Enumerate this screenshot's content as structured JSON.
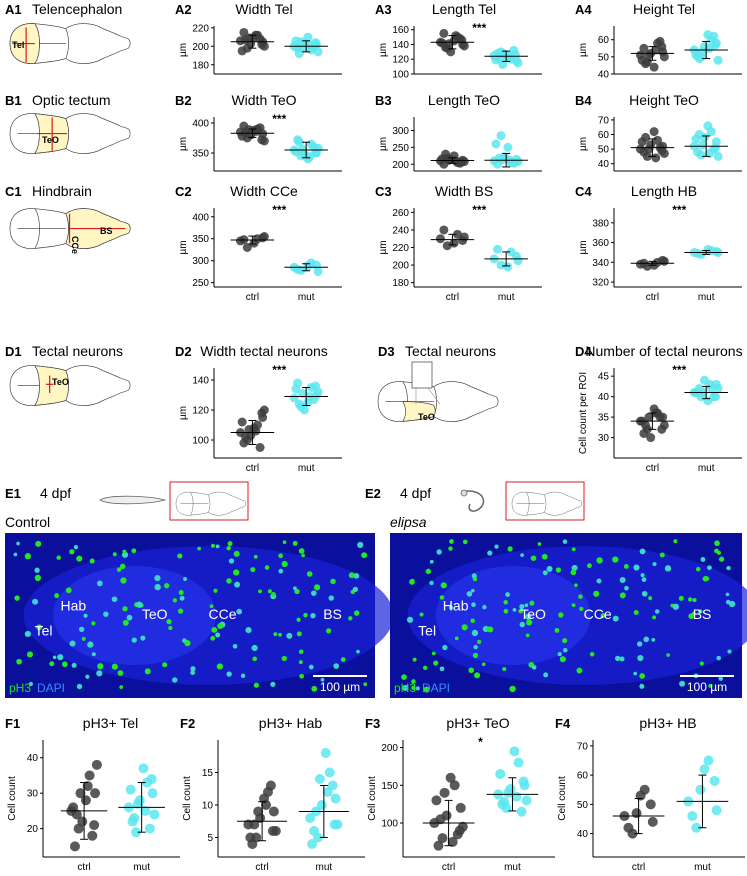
{
  "colors": {
    "ctrl": "#3d3d3d",
    "mut": "#5ce6ee",
    "highlight": "#fff6c4",
    "cut": "#d81e1e",
    "green": "#19e619",
    "blue": "#2a5cff",
    "micro_bg": "#0a0f9c"
  },
  "row_a": {
    "label": "A1",
    "title": "Telencephalon",
    "region": "Tel"
  },
  "row_b": {
    "label": "B1",
    "title": "Optic tectum",
    "region": "TeO"
  },
  "row_c": {
    "label": "C1",
    "title": "Hindbrain",
    "region_cce": "CCe",
    "region_bs": "BS"
  },
  "row_d": {
    "label": "D1",
    "title": "Tectal neurons",
    "region": "TeO",
    "d3_label": "D3",
    "d3_title": "Tectal neurons",
    "d3_region": "TeO"
  },
  "micro": {
    "e1": {
      "label": "E1",
      "age": "4 dpf",
      "cond": "Control"
    },
    "e2": {
      "label": "E2",
      "age": "4 dpf",
      "cond": "elipsa"
    },
    "regions": [
      "Tel",
      "Hab",
      "TeO",
      "CCe",
      "BS"
    ],
    "stain1": "pH3",
    "stain2": "DAPI",
    "scale": "100 µm"
  },
  "chart_data": [
    {
      "id": "A2",
      "type": "scatter",
      "title": "Width Tel",
      "ylabel": "µm",
      "ylim": [
        170,
        222
      ],
      "yticks": [
        180,
        200,
        220
      ],
      "sig": "",
      "categories": [],
      "series": [
        {
          "name": "ctrl",
          "values": [
            206,
            212,
            198,
            205,
            215,
            210,
            200,
            203,
            208,
            195,
            212,
            207,
            202,
            209
          ]
        },
        {
          "name": "mut",
          "values": [
            200,
            196,
            205,
            202,
            198,
            210,
            194,
            203,
            199,
            206,
            201,
            192,
            204,
            198
          ]
        }
      ],
      "means": [
        205,
        200
      ],
      "sd": [
        7,
        6
      ]
    },
    {
      "id": "A3",
      "type": "scatter",
      "title": "Length Tel",
      "ylabel": "µm",
      "ylim": [
        100,
        165
      ],
      "yticks": [
        100,
        120,
        140,
        160
      ],
      "sig": "***",
      "categories": [],
      "series": [
        {
          "name": "ctrl",
          "values": [
            143,
            150,
            135,
            140,
            155,
            145,
            138,
            130,
            148,
            142,
            152,
            136,
            146,
            141
          ]
        },
        {
          "name": "mut",
          "values": [
            125,
            120,
            130,
            118,
            128,
            122,
            115,
            127,
            132,
            119,
            124,
            121,
            126,
            113
          ]
        }
      ],
      "means": [
        143,
        124
      ],
      "sd": [
        9,
        7
      ]
    },
    {
      "id": "A4",
      "type": "scatter",
      "title": "Height Tel",
      "ylabel": "µm",
      "ylim": [
        40,
        68
      ],
      "yticks": [
        40,
        50,
        60
      ],
      "sig": "",
      "categories": [],
      "series": [
        {
          "name": "ctrl",
          "values": [
            51,
            58,
            47,
            53,
            55,
            44,
            50,
            52,
            59,
            48,
            54,
            46,
            56,
            51
          ]
        },
        {
          "name": "mut",
          "values": [
            54,
            60,
            50,
            58,
            52,
            63,
            48,
            56,
            62,
            51,
            55,
            49,
            57,
            53
          ]
        }
      ],
      "means": [
        52,
        54
      ],
      "sd": [
        4,
        5
      ]
    },
    {
      "id": "B2",
      "type": "scatter",
      "title": "Width TeO",
      "ylabel": "µm",
      "ylim": [
        320,
        410
      ],
      "yticks": [
        350,
        400
      ],
      "sig": "***",
      "categories": [],
      "series": [
        {
          "name": "ctrl",
          "values": [
            385,
            390,
            375,
            382,
            395,
            388,
            370,
            380,
            392,
            378,
            386,
            384,
            372,
            389
          ]
        },
        {
          "name": "mut",
          "values": [
            355,
            365,
            345,
            350,
            372,
            340,
            358,
            348,
            360,
            352,
            344,
            368,
            350,
            356
          ]
        }
      ],
      "means": [
        383,
        355
      ],
      "sd": [
        7,
        13
      ]
    },
    {
      "id": "B3",
      "type": "scatter",
      "title": "Length TeO",
      "ylabel": "µm",
      "ylim": [
        180,
        340
      ],
      "yticks": [
        200,
        250,
        300
      ],
      "sig": "",
      "categories": [],
      "series": [
        {
          "name": "ctrl",
          "values": [
            210,
            205,
            218,
            212,
            200,
            225,
            208,
            214,
            203,
            216,
            210,
            230,
            207,
            212
          ]
        },
        {
          "name": "mut",
          "values": [
            210,
            205,
            285,
            215,
            200,
            250,
            208,
            222,
            203,
            260,
            212,
            218,
            206,
            214
          ]
        }
      ],
      "means": [
        211,
        212
      ],
      "sd": [
        8,
        20
      ]
    },
    {
      "id": "B4",
      "type": "scatter",
      "title": "Height TeO",
      "ylabel": "µm",
      "ylim": [
        35,
        72
      ],
      "yticks": [
        40,
        50,
        60,
        70
      ],
      "sig": "",
      "categories": [],
      "series": [
        {
          "name": "ctrl",
          "values": [
            50,
            56,
            45,
            52,
            48,
            62,
            47,
            53,
            51,
            55,
            44,
            58,
            49,
            50
          ]
        },
        {
          "name": "mut",
          "values": [
            52,
            62,
            46,
            55,
            48,
            66,
            45,
            58,
            50,
            57,
            47,
            60,
            51,
            53
          ]
        }
      ],
      "means": [
        51,
        52
      ],
      "sd": [
        6,
        7
      ]
    },
    {
      "id": "C2",
      "type": "scatter",
      "title": "Width CCe",
      "ylabel": "µm",
      "ylim": [
        240,
        420
      ],
      "yticks": [
        250,
        300,
        350,
        400
      ],
      "sig": "***",
      "categories": [
        "ctrl",
        "mut"
      ],
      "series": [
        {
          "name": "ctrl",
          "values": [
            345,
            350,
            330,
            352,
            348,
            340,
            355
          ]
        },
        {
          "name": "mut",
          "values": [
            285,
            295,
            278,
            290,
            280,
            288,
            275
          ]
        }
      ],
      "means": [
        347,
        285
      ],
      "sd": [
        9,
        8
      ]
    },
    {
      "id": "C3",
      "type": "scatter",
      "title": "Width BS",
      "ylabel": "µm",
      "ylim": [
        175,
        265
      ],
      "yticks": [
        180,
        200,
        220,
        240,
        260
      ],
      "sig": "***",
      "categories": [
        "ctrl",
        "mut"
      ],
      "series": [
        {
          "name": "ctrl",
          "values": [
            230,
            235,
            222,
            228,
            240,
            225,
            232
          ]
        },
        {
          "name": "mut",
          "values": [
            207,
            215,
            200,
            210,
            218,
            198,
            205
          ]
        }
      ],
      "means": [
        229,
        207
      ],
      "sd": [
        6,
        8
      ]
    },
    {
      "id": "C4",
      "type": "scatter",
      "title": "Length HB",
      "ylabel": "µm",
      "ylim": [
        315,
        395
      ],
      "yticks": [
        320,
        340,
        360,
        380
      ],
      "sig": "***",
      "categories": [
        "ctrl",
        "mut"
      ],
      "series": [
        {
          "name": "ctrl",
          "values": [
            338,
            340,
            336,
            342,
            339,
            337,
            341
          ]
        },
        {
          "name": "mut",
          "values": [
            350,
            352,
            348,
            351,
            349,
            353,
            350
          ]
        }
      ],
      "means": [
        339,
        350
      ],
      "sd": [
        2,
        2
      ]
    },
    {
      "id": "D2",
      "type": "scatter",
      "title": "Width tectal neurons",
      "ylabel": "µm",
      "ylim": [
        88,
        148
      ],
      "yticks": [
        100,
        120,
        140
      ],
      "sig": "***",
      "categories": [
        "ctrl",
        "mut"
      ],
      "series": [
        {
          "name": "ctrl",
          "values": [
            105,
            110,
            100,
            115,
            98,
            108,
            120,
            103,
            95,
            112,
            106,
            102,
            118,
            107
          ]
        },
        {
          "name": "mut",
          "values": [
            128,
            135,
            122,
            130,
            138,
            125,
            132,
            120,
            127,
            134,
            129,
            124,
            136,
            131
          ]
        }
      ],
      "means": [
        105,
        129
      ],
      "sd": [
        8,
        6
      ]
    },
    {
      "id": "D4",
      "type": "scatter",
      "title": "Number of tectal neurons",
      "ylabel": "Cell count per ROI",
      "ylim": [
        25,
        47
      ],
      "yticks": [
        30,
        35,
        40,
        45
      ],
      "sig": "***",
      "categories": [
        "ctrl",
        "mut"
      ],
      "series": [
        {
          "name": "ctrl",
          "values": [
            34,
            36,
            32,
            35,
            31,
            37,
            33,
            30,
            35,
            34,
            36,
            33,
            32,
            35
          ]
        },
        {
          "name": "mut",
          "values": [
            41,
            42,
            40,
            43,
            41,
            39,
            42,
            44,
            40,
            41,
            43,
            42,
            40,
            41
          ]
        }
      ],
      "means": [
        34,
        41
      ],
      "sd": [
        2,
        1.5
      ]
    },
    {
      "id": "F1",
      "type": "scatter",
      "title": "pH3+ Tel",
      "ylabel": "Cell count",
      "ylim": [
        12,
        45
      ],
      "yticks": [
        20,
        30,
        40
      ],
      "sig": "",
      "categories": [
        "ctrl",
        "mut"
      ],
      "series": [
        {
          "name": "ctrl",
          "values": [
            25,
            35,
            20,
            30,
            15,
            28,
            38,
            22,
            18,
            26,
            32,
            24,
            21,
            30
          ]
        },
        {
          "name": "mut",
          "values": [
            26,
            33,
            19,
            30,
            22,
            37,
            24,
            28,
            20,
            31,
            25,
            23,
            34,
            27
          ]
        }
      ],
      "means": [
        25,
        26
      ],
      "sd": [
        8,
        7
      ]
    },
    {
      "id": "F2",
      "type": "scatter",
      "title": "pH3+ Hab",
      "ylabel": "Cell count",
      "ylim": [
        2,
        20
      ],
      "yticks": [
        5,
        10,
        15
      ],
      "sig": "",
      "categories": [
        "ctrl",
        "mut"
      ],
      "series": [
        {
          "name": "ctrl",
          "values": [
            7,
            12,
            5,
            9,
            4,
            11,
            6,
            8,
            13,
            5,
            10,
            7,
            6,
            9
          ]
        },
        {
          "name": "mut",
          "values": [
            8,
            15,
            5,
            11,
            6,
            18,
            7,
            10,
            13,
            4,
            12,
            9,
            7,
            14
          ]
        }
      ],
      "means": [
        7.5,
        9
      ],
      "sd": [
        3,
        4
      ]
    },
    {
      "id": "F3",
      "type": "scatter",
      "title": "pH3+ TeO",
      "ylabel": "Cell count",
      "ylim": [
        55,
        210
      ],
      "yticks": [
        100,
        150,
        200
      ],
      "sig": "*",
      "categories": [
        "ctrl",
        "mut"
      ],
      "series": [
        {
          "name": "ctrl",
          "values": [
            100,
            150,
            80,
            120,
            70,
            160,
            95,
            110,
            85,
            130,
            75,
            105,
            90,
            140
          ]
        },
        {
          "name": "mut",
          "values": [
            138,
            180,
            120,
            150,
            125,
            195,
            130,
            145,
            115,
            165,
            135,
            128,
            155,
            140
          ]
        }
      ],
      "means": [
        100,
        138
      ],
      "sd": [
        30,
        22
      ]
    },
    {
      "id": "F4",
      "type": "scatter",
      "title": "pH3+ HB",
      "ylabel": "Cell count",
      "ylim": [
        32,
        72
      ],
      "yticks": [
        40,
        50,
        60,
        70
      ],
      "sig": "",
      "categories": [
        "ctrl",
        "mut"
      ],
      "series": [
        {
          "name": "ctrl",
          "values": [
            46,
            55,
            40,
            50,
            42,
            53,
            44,
            47
          ]
        },
        {
          "name": "mut",
          "values": [
            51,
            65,
            42,
            58,
            46,
            62,
            48,
            55
          ]
        }
      ],
      "means": [
        46,
        51
      ],
      "sd": [
        6,
        9
      ]
    }
  ]
}
